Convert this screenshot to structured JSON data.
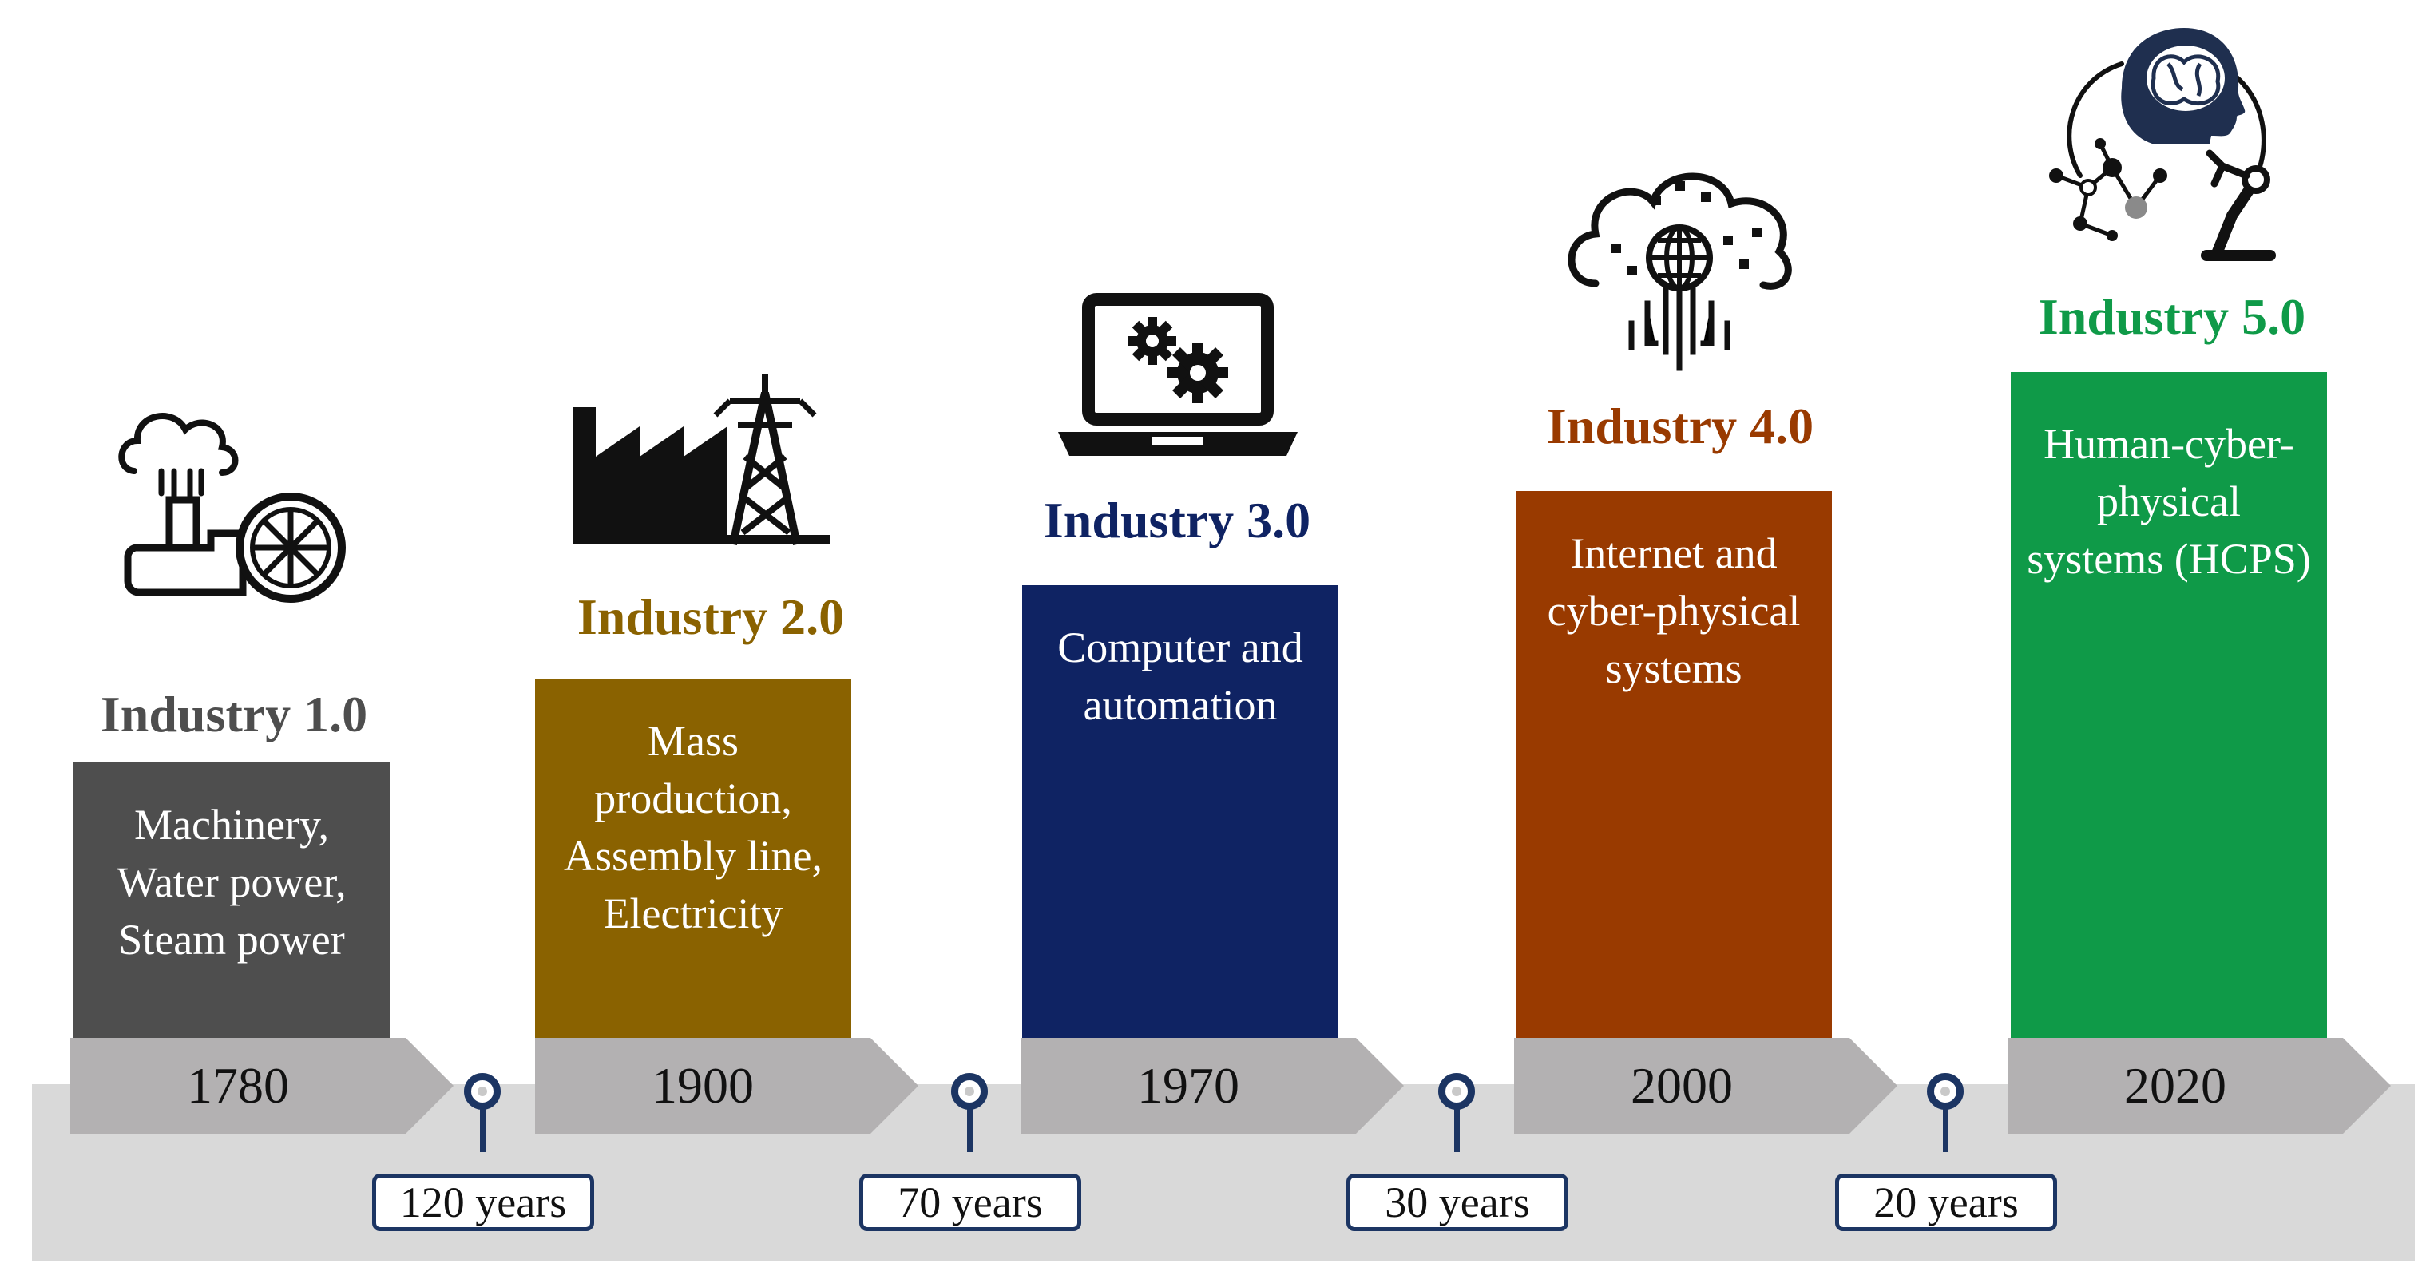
{
  "colors": {
    "era1": "#4e4e4e",
    "era2": "#8a6200",
    "era3": "#0f2363",
    "era4": "#993a00",
    "era5": "#0f9a48",
    "timeline": "#d9d9d9",
    "arrow": "#b3b1b2",
    "marker": "#1c3563"
  },
  "eras": [
    {
      "title": "Industry 1.0",
      "desc_lines": [
        "Machinery,",
        "Water power,",
        "Steam power"
      ],
      "year": "1780",
      "icon": "steam-engine-icon"
    },
    {
      "title": "Industry 2.0",
      "desc_lines": [
        "Mass",
        "production,",
        "Assembly line,",
        "Electricity"
      ],
      "year": "1900",
      "icon": "factory-power-tower-icon"
    },
    {
      "title": "Industry 3.0",
      "desc_lines": [
        "Computer and",
        "automation"
      ],
      "year": "1970",
      "icon": "laptop-gears-icon"
    },
    {
      "title": "Industry 4.0",
      "desc_lines": [
        "Internet and",
        "cyber-physical",
        "systems"
      ],
      "year": "2000",
      "icon": "cloud-globe-icon"
    },
    {
      "title": "Industry 5.0",
      "desc_lines": [
        "Human-cyber-",
        "physical",
        "systems (HCPS)"
      ],
      "year": "2020",
      "icon": "human-ai-robot-icon"
    }
  ],
  "gaps": [
    {
      "label": "120 years"
    },
    {
      "label": "70 years"
    },
    {
      "label": "30 years"
    },
    {
      "label": "20 years"
    }
  ]
}
